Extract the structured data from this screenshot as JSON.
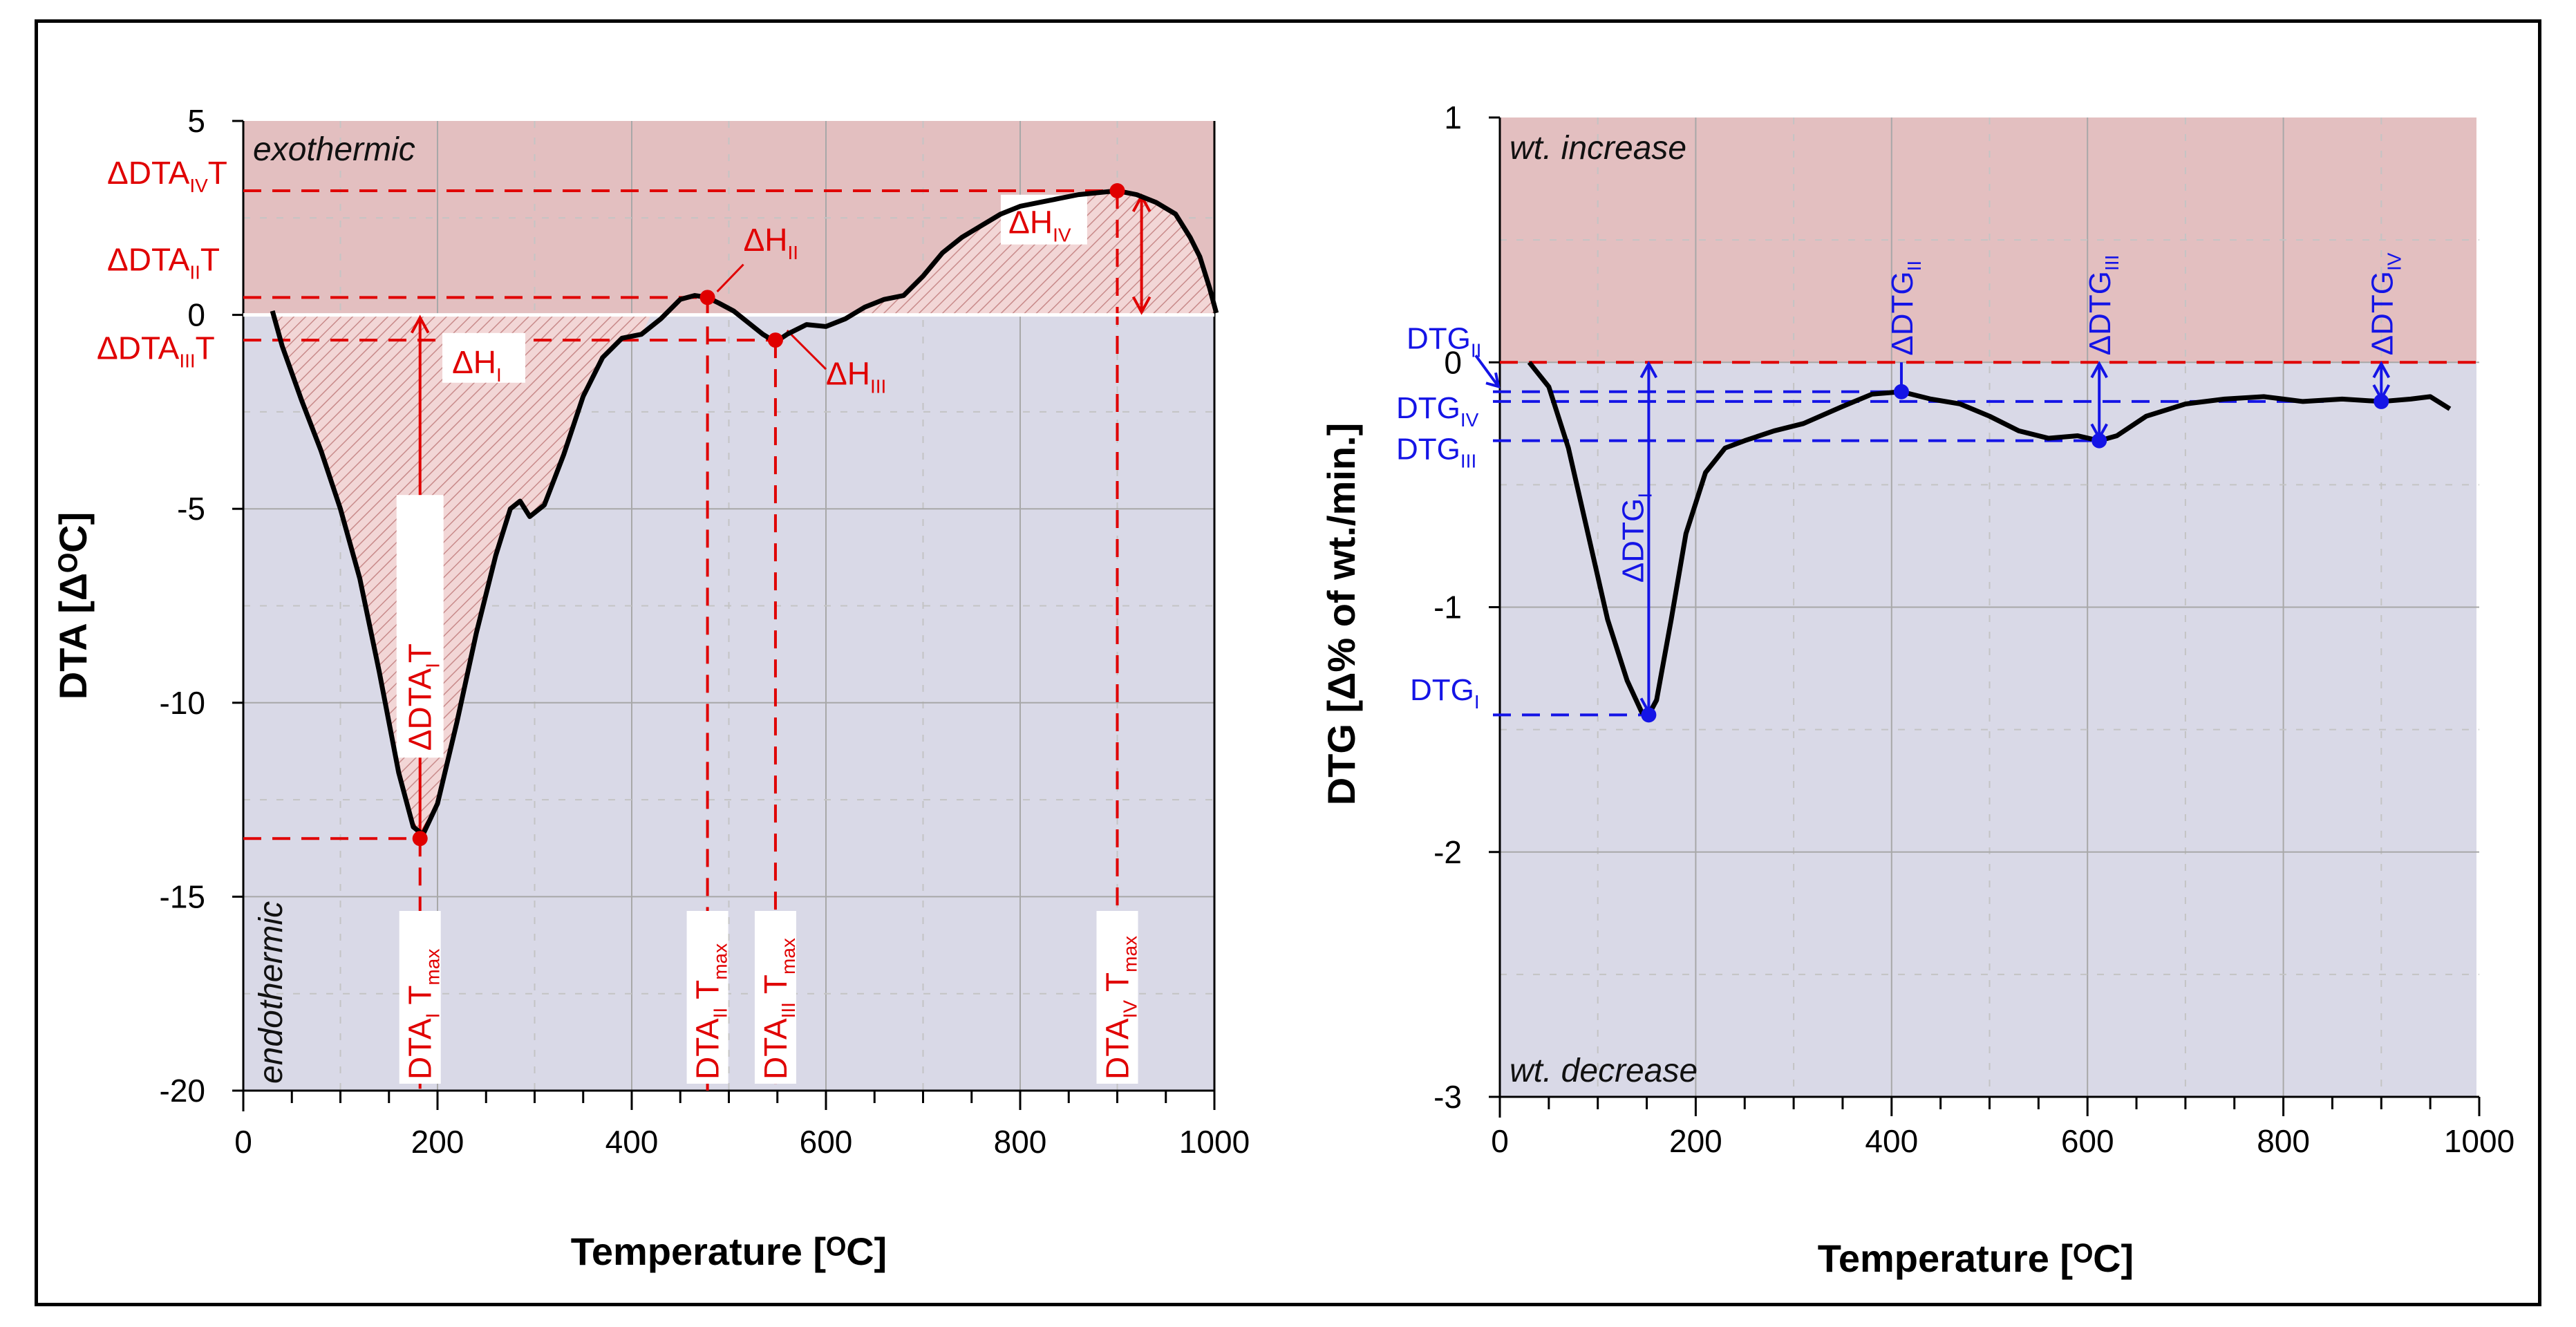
{
  "chart_data": [
    {
      "type": "line",
      "ylabel": "DTA [ΔᴼC]",
      "xlabel": "Temperature [ᴼC]",
      "xlim": [
        0,
        1000
      ],
      "ylim": [
        -20,
        5
      ],
      "x_ticks": [
        0,
        200,
        400,
        600,
        800,
        1000
      ],
      "y_ticks": [
        5,
        0,
        -5,
        -10,
        -15,
        -20
      ],
      "grid": true,
      "zones": {
        "upper": "exothermic",
        "lower": "endothermic"
      },
      "colors": {
        "upper_zone": "#e3bfc0",
        "lower_zone": "#d9d9e7",
        "annotation": "#e00000",
        "curve": "#000000"
      },
      "series": [
        {
          "x": [
            30,
            40,
            60,
            80,
            100,
            120,
            140,
            160,
            175,
            185,
            200,
            220,
            240,
            260,
            275,
            285,
            295,
            310,
            330,
            350,
            370,
            390,
            410,
            430,
            450,
            465,
            478,
            490,
            505,
            520,
            535,
            548,
            560,
            580,
            600,
            620,
            640,
            660,
            680,
            700,
            720,
            740,
            760,
            780,
            800,
            820,
            840,
            860,
            880,
            900,
            920,
            940,
            960,
            975,
            985,
            995,
            1002
          ],
          "y": [
            0.1,
            -0.8,
            -2.2,
            -3.5,
            -5.0,
            -6.8,
            -9.2,
            -11.8,
            -13.2,
            -13.4,
            -12.6,
            -10.5,
            -8.2,
            -6.2,
            -5.0,
            -4.8,
            -5.2,
            -4.9,
            -3.6,
            -2.1,
            -1.1,
            -0.6,
            -0.5,
            -0.1,
            0.4,
            0.5,
            0.45,
            0.3,
            0.1,
            -0.2,
            -0.5,
            -0.7,
            -0.5,
            -0.25,
            -0.3,
            -0.1,
            0.2,
            0.4,
            0.5,
            1.0,
            1.6,
            2.0,
            2.3,
            2.6,
            2.8,
            2.9,
            3.0,
            3.1,
            3.15,
            3.2,
            3.1,
            2.9,
            2.6,
            2.0,
            1.5,
            0.7,
            0.05
          ]
        }
      ],
      "points": [
        {
          "x": 182,
          "y": -13.5
        },
        {
          "x": 478,
          "y": 0.45
        },
        {
          "x": 548,
          "y": -0.65
        },
        {
          "x": 900,
          "y": 3.2
        }
      ],
      "annotations": {
        "peak_labels": [
          {
            "main": "ΔDTA",
            "sub": "IV",
            "tail": "T"
          },
          {
            "main": "ΔDTA",
            "sub": "II",
            "tail": "T"
          },
          {
            "main": "ΔDTA",
            "sub": "III",
            "tail": "T"
          }
        ],
        "delta_dta_1": {
          "main": "ΔDTA",
          "sub": "I",
          "tail": "T"
        },
        "heats": [
          {
            "main": "ΔH",
            "sub": "I"
          },
          {
            "main": "ΔH",
            "sub": "II"
          },
          {
            "main": "ΔH",
            "sub": "III"
          },
          {
            "main": "ΔH",
            "sub": "IV"
          }
        ],
        "tmax": [
          {
            "main": "DTA",
            "sub": "I",
            "tail": " T",
            "tail_sub": "max"
          },
          {
            "main": "DTA",
            "sub": "II",
            "tail": " T",
            "tail_sub": "max"
          },
          {
            "main": "DTA",
            "sub": "III",
            "tail": " T",
            "tail_sub": "max"
          },
          {
            "main": "DTA",
            "sub": "IV",
            "tail": " T",
            "tail_sub": "max"
          }
        ]
      }
    },
    {
      "type": "line",
      "ylabel": "DTG [Δ% of wt./min.]",
      "xlabel": "Temperature [ᴼC]",
      "xlim": [
        0,
        1000
      ],
      "ylim": [
        -3,
        1
      ],
      "x_ticks": [
        0,
        200,
        400,
        600,
        800,
        1000
      ],
      "y_ticks": [
        1,
        0,
        -1,
        -2,
        -3
      ],
      "grid": true,
      "zones": {
        "upper": "wt. increase",
        "lower": "wt. decrease"
      },
      "colors": {
        "upper_zone": "#e3bfc0",
        "lower_zone": "#d9d9e7",
        "annotation": "#1414e6",
        "curve": "#000000"
      },
      "series": [
        {
          "x": [
            30,
            50,
            70,
            90,
            110,
            130,
            145,
            152,
            160,
            175,
            190,
            210,
            230,
            250,
            280,
            310,
            350,
            380,
            410,
            440,
            470,
            500,
            530,
            560,
            590,
            612,
            630,
            660,
            700,
            740,
            780,
            820,
            860,
            900,
            930,
            950,
            970
          ],
          "y": [
            0.0,
            -0.1,
            -0.35,
            -0.7,
            -1.05,
            -1.3,
            -1.43,
            -1.44,
            -1.38,
            -1.05,
            -0.7,
            -0.45,
            -0.35,
            -0.32,
            -0.28,
            -0.25,
            -0.18,
            -0.13,
            -0.12,
            -0.15,
            -0.17,
            -0.22,
            -0.28,
            -0.31,
            -0.3,
            -0.32,
            -0.3,
            -0.22,
            -0.17,
            -0.15,
            -0.14,
            -0.16,
            -0.15,
            -0.16,
            -0.15,
            -0.14,
            -0.19
          ]
        }
      ],
      "points": [
        {
          "x": 152,
          "y": -1.44
        },
        {
          "x": 410,
          "y": -0.12
        },
        {
          "x": 612,
          "y": -0.32
        },
        {
          "x": 900,
          "y": -0.16
        }
      ],
      "annotations": {
        "left_labels": [
          {
            "main": "DTG",
            "sub": "II"
          },
          {
            "main": "DTG",
            "sub": "IV"
          },
          {
            "main": "DTG",
            "sub": "III"
          },
          {
            "main": "DTG",
            "sub": "I"
          }
        ],
        "deltas": [
          {
            "main": "ΔDTG",
            "sub": "I"
          },
          {
            "main": "ΔDTG",
            "sub": "II"
          },
          {
            "main": "ΔDTG",
            "sub": "III"
          },
          {
            "main": "ΔDTG",
            "sub": "IV"
          }
        ]
      }
    }
  ]
}
